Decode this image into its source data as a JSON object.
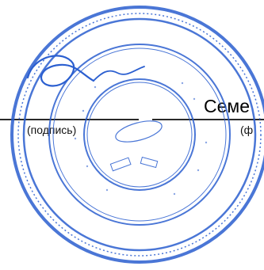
{
  "document": {
    "signature_caption": "(подпись)",
    "name_caption": "(ф",
    "name_text": "Семе"
  },
  "seal": {
    "color": "#2b5fd0",
    "image_label": "official-seal"
  }
}
